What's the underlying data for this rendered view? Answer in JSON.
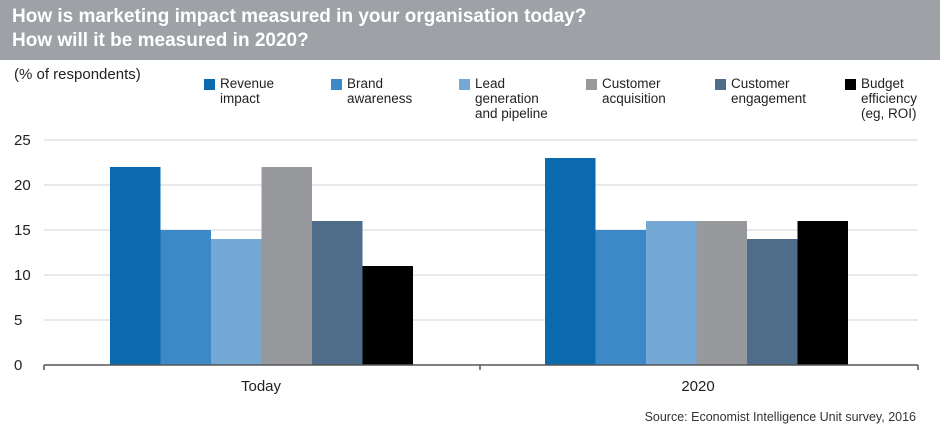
{
  "header": {
    "title_line1": "How is marketing impact measured in your organisation today?",
    "title_line2": "How will it be measured in 2020?"
  },
  "colors": {
    "header_bg": "#9ea1a6",
    "gridline": "#d3d3d3",
    "axis": "#555555"
  },
  "chart_data": {
    "type": "bar",
    "title": "How is marketing impact measured in your organisation today? How will it be measured in 2020?",
    "ylabel": "(% of respondents)",
    "xlabel": "",
    "categories": [
      "Today",
      "2020"
    ],
    "ylim": [
      0,
      25
    ],
    "yticks": [
      0,
      5,
      10,
      15,
      20,
      25
    ],
    "grid": true,
    "legend_position": "top",
    "series": [
      {
        "name": "Revenue impact",
        "legend_lines": [
          "Revenue",
          "impact"
        ],
        "color": "#0a6aad",
        "values": [
          22,
          23
        ]
      },
      {
        "name": "Brand awareness",
        "legend_lines": [
          "Brand",
          "awareness"
        ],
        "color": "#3d88c6",
        "values": [
          15,
          15
        ]
      },
      {
        "name": "Lead generation and pipeline",
        "legend_lines": [
          "Lead",
          "generation",
          "and pipeline"
        ],
        "color": "#76a8d6",
        "values": [
          14,
          16
        ]
      },
      {
        "name": "Customer acquisition",
        "legend_lines": [
          "Customer",
          "acquisition"
        ],
        "color": "#97999c",
        "values": [
          22,
          16
        ]
      },
      {
        "name": "Customer engagement",
        "legend_lines": [
          "Customer",
          "engagement"
        ],
        "color": "#4f6d8a",
        "values": [
          16,
          14
        ]
      },
      {
        "name": "Budget efficiency (eg, ROI)",
        "legend_lines": [
          "Budget",
          "efficiency",
          "(eg, ROI)"
        ],
        "color": "#000000",
        "values": [
          11,
          16
        ]
      }
    ],
    "source": "Source: Economist Intelligence Unit survey, 2016"
  }
}
